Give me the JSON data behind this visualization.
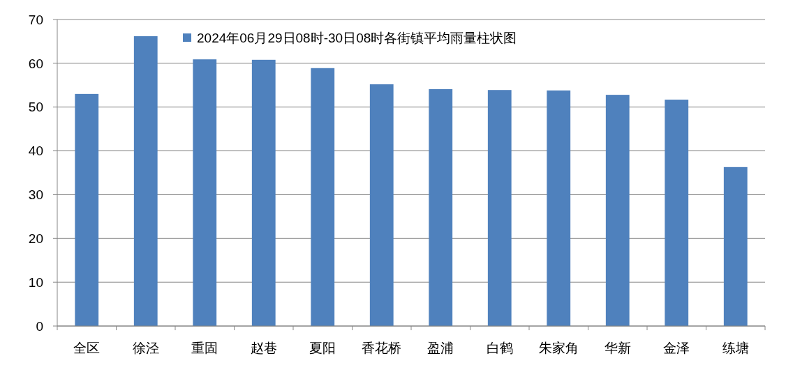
{
  "chart_data": {
    "type": "bar",
    "categories": [
      "全区",
      "徐泾",
      "重固",
      "赵巷",
      "夏阳",
      "香花桥",
      "盈浦",
      "白鹤",
      "朱家角",
      "华新",
      "金泽",
      "练塘"
    ],
    "series": [
      {
        "name": "2024年06月29日08时-30日08时各街镇平均雨量柱状图",
        "color": "#4f81bd",
        "values": [
          53.0,
          66.2,
          60.9,
          60.8,
          58.9,
          55.2,
          54.1,
          53.9,
          53.8,
          52.8,
          51.7,
          36.3
        ]
      }
    ],
    "ylim": [
      0,
      70
    ],
    "yticks": [
      0,
      10,
      20,
      30,
      40,
      50,
      60,
      70
    ],
    "grid": "y",
    "legend": "top"
  }
}
